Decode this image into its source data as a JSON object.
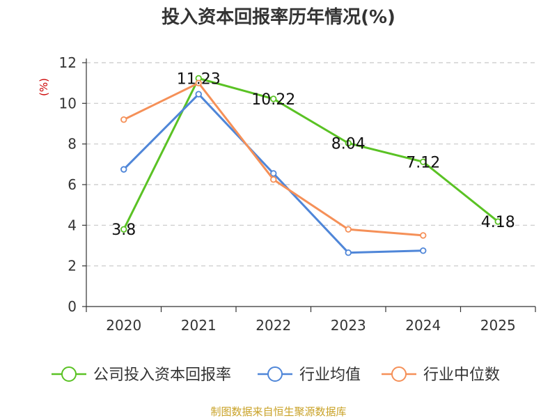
{
  "chart_data": {
    "type": "line",
    "title": "投入资本回报率历年情况(%)",
    "ylabel": "(%)",
    "xlabel": "",
    "categories": [
      "2020",
      "2021",
      "2022",
      "2023",
      "2024",
      "2025"
    ],
    "ylim": [
      0,
      12
    ],
    "yticks": [
      0,
      2,
      4,
      6,
      8,
      10,
      12
    ],
    "grid": true,
    "legend_position": "bottom",
    "series": [
      {
        "name": "公司投入资本回报率",
        "color": "#5ac224",
        "values": [
          3.8,
          11.23,
          10.22,
          8.04,
          7.12,
          4.18
        ],
        "labels": [
          "3.8",
          "11.23",
          "10.22",
          "8.04",
          "7.12",
          "4.18"
        ]
      },
      {
        "name": "行业均值",
        "color": "#4f86d8",
        "values": [
          6.75,
          10.45,
          6.55,
          2.65,
          2.75,
          null
        ]
      },
      {
        "name": "行业中位数",
        "color": "#f59058",
        "values": [
          9.2,
          11.0,
          6.25,
          3.8,
          3.5,
          null
        ]
      }
    ],
    "source": "制图数据来自恒生聚源数据库"
  }
}
